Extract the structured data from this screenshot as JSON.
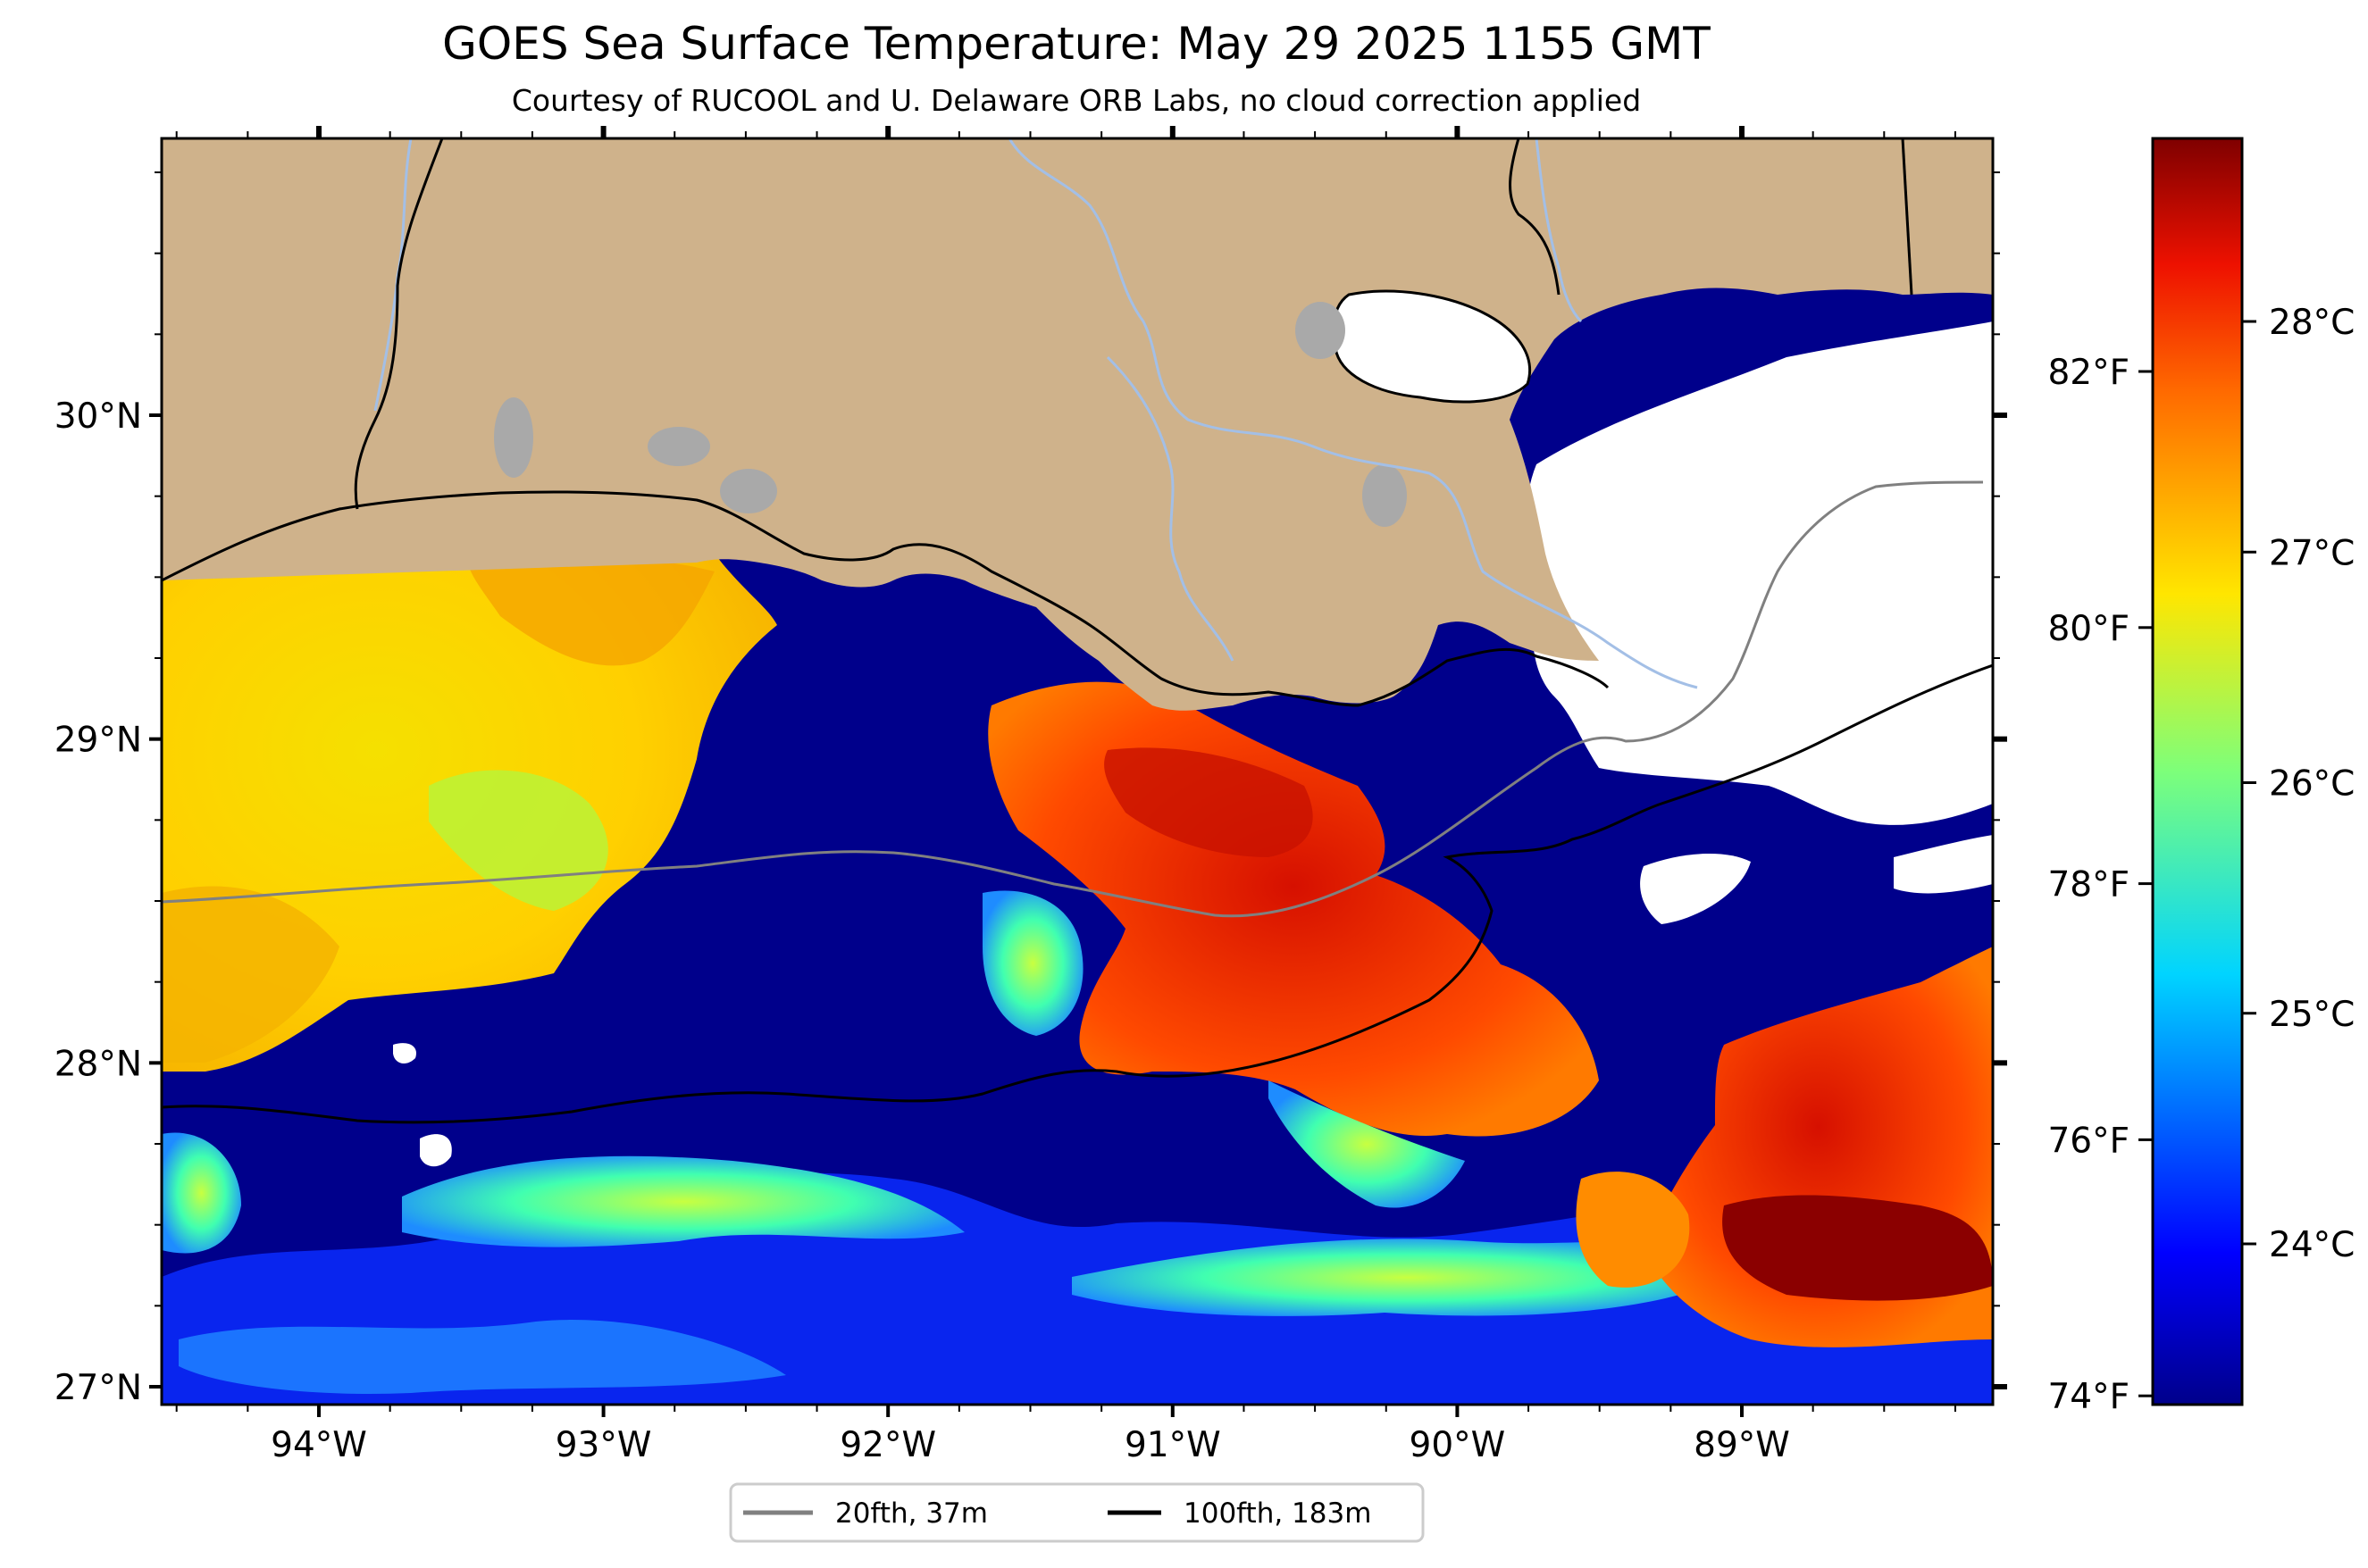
{
  "title": "GOES Sea Surface Temperature: May 29 2025 1155 GMT",
  "subtitle": "Courtesy of RUCOOL and U. Delaware ORB Labs, no cloud correction applied",
  "map": {
    "lon_ticks": [
      {
        "value": -94,
        "label": "94°W"
      },
      {
        "value": -93,
        "label": "93°W"
      },
      {
        "value": -92,
        "label": "92°W"
      },
      {
        "value": -91,
        "label": "91°W"
      },
      {
        "value": -90,
        "label": "90°W"
      },
      {
        "value": -89,
        "label": "89°W"
      }
    ],
    "lat_ticks": [
      {
        "value": 27,
        "label": "27°N"
      },
      {
        "value": 28,
        "label": "28°N"
      },
      {
        "value": 29,
        "label": "29°N"
      },
      {
        "value": 30,
        "label": "30°N"
      }
    ],
    "colors": {
      "land": "#cfb28b",
      "cold_water": "#00008b",
      "cloud_mask": "#ffffff",
      "lakes": "#a9a9a9",
      "rivers": "#a3bfe6",
      "isobath_20": "#808080",
      "isobath_100": "#000000"
    }
  },
  "legend": [
    {
      "label": "20fth, 37m",
      "color": "#808080"
    },
    {
      "label": "100fth, 183m",
      "color": "#000000"
    }
  ],
  "colorbar": {
    "celsius_labels": [
      "28°C",
      "27°C",
      "26°C",
      "25°C",
      "24°C"
    ],
    "fahrenheit_labels": [
      "82°F",
      "80°F",
      "78°F",
      "76°F",
      "74°F"
    ],
    "colormap": "jet"
  }
}
